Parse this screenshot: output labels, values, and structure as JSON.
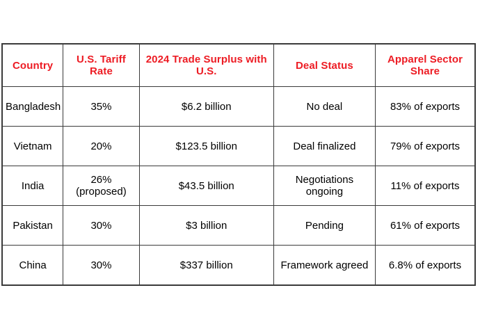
{
  "colors": {
    "header_text": "#ed1c24",
    "body_text": "#000000",
    "border": "#3a3a3a",
    "background": "#ffffff"
  },
  "chart_data": {
    "type": "table",
    "title": "",
    "columns": [
      "Country",
      "U.S. Tariff Rate",
      "2024 Trade Surplus with U.S.",
      "Deal Status",
      "Apparel Sector Share"
    ],
    "rows": [
      [
        "Bangladesh",
        "35%",
        "$6.2 billion",
        "No deal",
        "83% of exports"
      ],
      [
        "Vietnam",
        "20%",
        "$123.5 billion",
        "Deal finalized",
        "79% of exports"
      ],
      [
        "India",
        "26% (proposed)",
        "$43.5 billion",
        "Negotiations ongoing",
        "11% of exports"
      ],
      [
        "Pakistan",
        "30%",
        "$3 billion",
        "Pending",
        "61% of exports"
      ],
      [
        "China",
        "30%",
        "$337 billion",
        "Framework agreed",
        "6.8% of exports"
      ]
    ]
  }
}
